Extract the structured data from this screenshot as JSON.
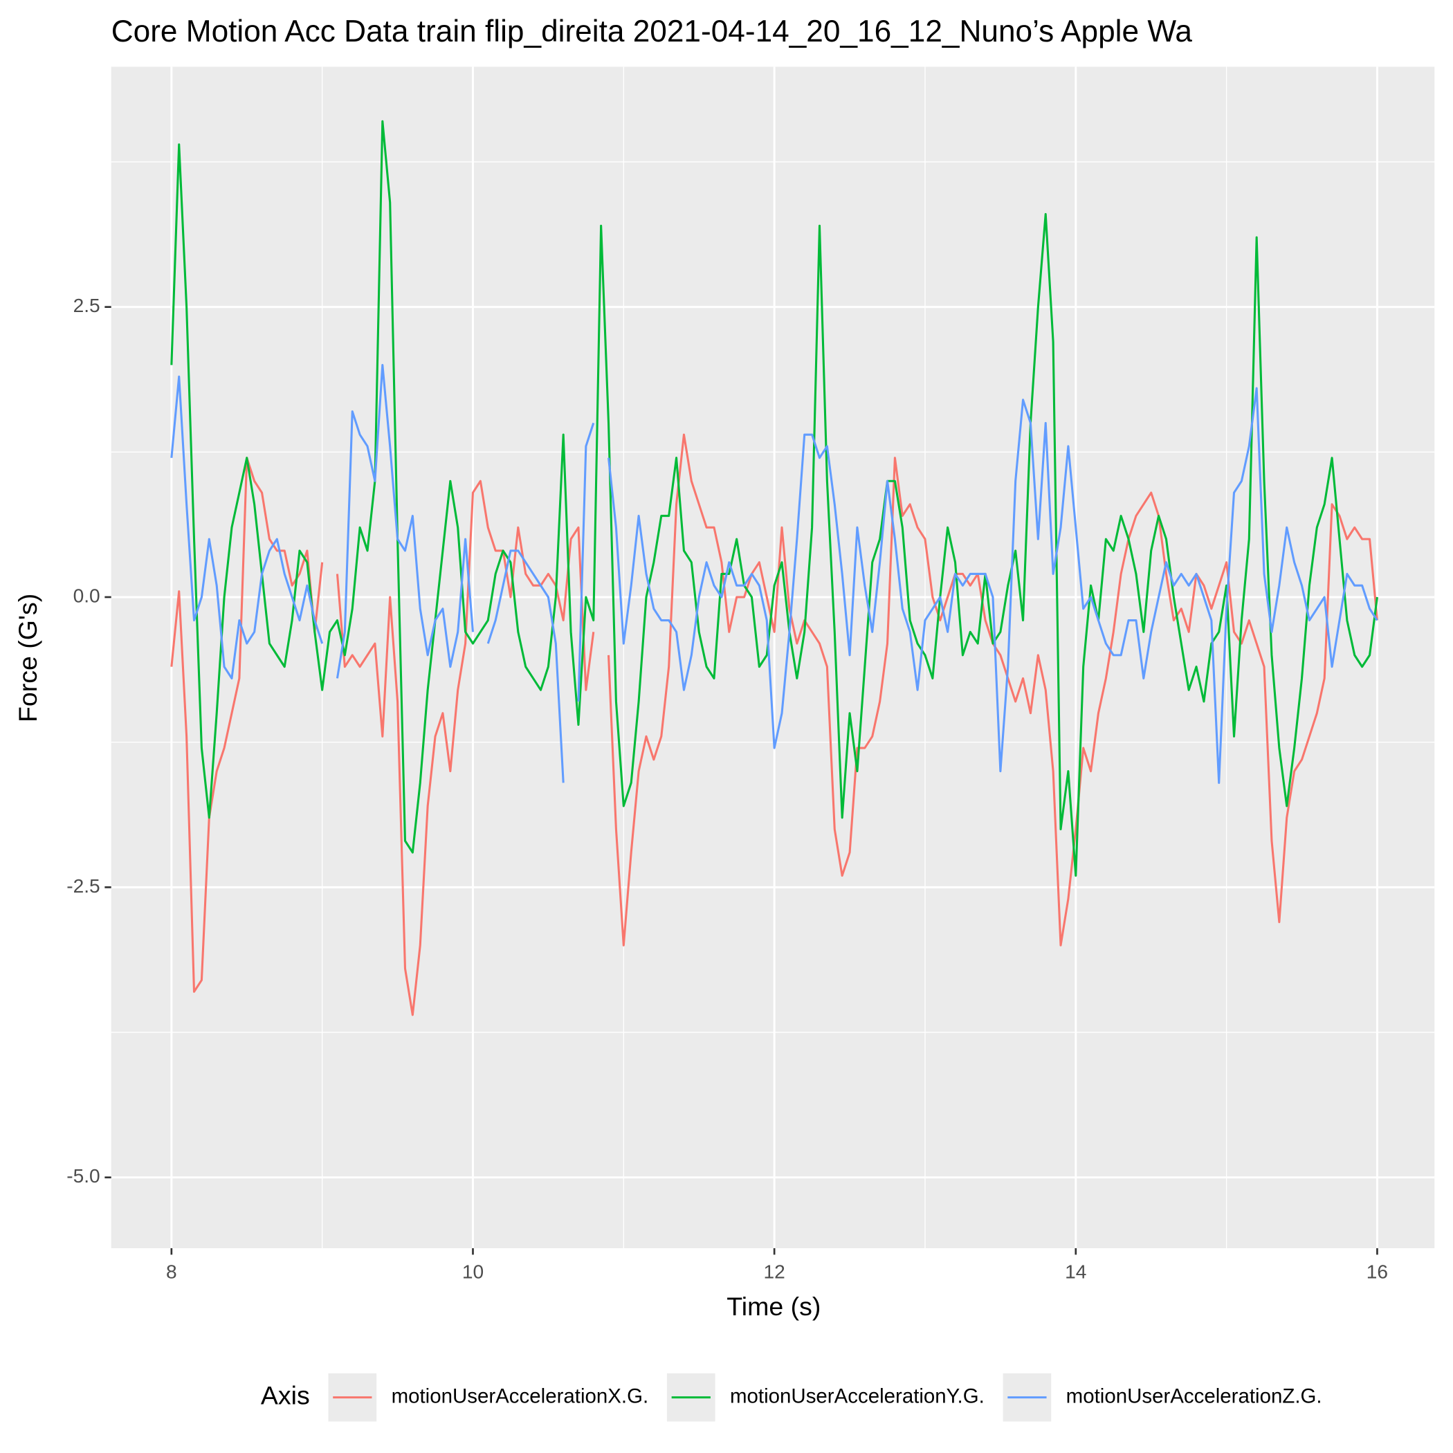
{
  "chart_data": {
    "type": "line",
    "title": "Core Motion Acc Data train flip_direita 2021-04-14_20_16_12_Nuno’s Apple Wa",
    "x_label": "Time (s)",
    "y_label": "Force (G's)",
    "legend_title": "Axis",
    "legend_position": "bottom",
    "xlim": [
      7.6,
      16.38
    ],
    "ylim": [
      -5.61,
      4.57
    ],
    "xticks": [
      8,
      10,
      12,
      14,
      16
    ],
    "yticks": [
      {
        "value": 2.5,
        "label": "2.5"
      },
      {
        "value": 0,
        "label": "0.0"
      },
      {
        "value": -2.5,
        "label": "-2.5"
      },
      {
        "value": -5,
        "label": "-5.0"
      }
    ],
    "x_minor_grid": [
      9,
      11,
      13,
      15
    ],
    "y_minor_grid": [
      3.75,
      1.25,
      -1.25,
      -3.75
    ],
    "grid": true,
    "x": [
      8,
      8.05,
      8.1,
      8.15,
      8.2,
      8.25,
      8.3,
      8.35,
      8.4,
      8.45,
      8.5,
      8.55,
      8.6,
      8.65,
      8.7,
      8.75,
      8.8,
      8.85,
      8.9,
      8.95,
      9,
      9.05,
      9.1,
      9.15,
      9.2,
      9.25,
      9.3,
      9.35,
      9.4,
      9.45,
      9.5,
      9.55,
      9.6,
      9.65,
      9.7,
      9.75,
      9.8,
      9.85,
      9.9,
      9.95,
      10,
      10.05,
      10.1,
      10.15,
      10.2,
      10.25,
      10.3,
      10.35,
      10.4,
      10.45,
      10.5,
      10.55,
      10.6,
      10.65,
      10.7,
      10.75,
      10.8,
      10.85,
      10.9,
      10.95,
      11,
      11.05,
      11.1,
      11.15,
      11.2,
      11.25,
      11.3,
      11.35,
      11.4,
      11.45,
      11.5,
      11.55,
      11.6,
      11.65,
      11.7,
      11.75,
      11.8,
      11.85,
      11.9,
      11.95,
      12,
      12.05,
      12.1,
      12.15,
      12.2,
      12.25,
      12.3,
      12.35,
      12.4,
      12.45,
      12.5,
      12.55,
      12.6,
      12.65,
      12.7,
      12.75,
      12.8,
      12.85,
      12.9,
      12.95,
      13,
      13.05,
      13.1,
      13.15,
      13.2,
      13.25,
      13.3,
      13.35,
      13.4,
      13.45,
      13.5,
      13.55,
      13.6,
      13.65,
      13.7,
      13.75,
      13.8,
      13.85,
      13.9,
      13.95,
      14,
      14.05,
      14.1,
      14.15,
      14.2,
      14.25,
      14.3,
      14.35,
      14.4,
      14.45,
      14.5,
      14.55,
      14.6,
      14.65,
      14.7,
      14.75,
      14.8,
      14.85,
      14.9,
      14.95,
      15,
      15.05,
      15.1,
      15.15,
      15.2,
      15.25,
      15.3,
      15.35,
      15.4,
      15.45,
      15.5,
      15.55,
      15.6,
      15.65,
      15.7,
      15.75,
      15.8,
      15.85,
      15.9,
      15.95,
      16
    ],
    "series": [
      {
        "name": "motionUserAccelerationX.G.",
        "color": "#F8766D",
        "values": [
          -0.6,
          0.05,
          -1.2,
          -3.4,
          -3.3,
          -1.9,
          -1.5,
          -1.3,
          -1.0,
          -0.7,
          1.2,
          1.0,
          0.9,
          0.5,
          0.4,
          0.4,
          0.1,
          0.2,
          0.4,
          -0.3,
          0.3,
          null,
          0.2,
          -0.6,
          -0.5,
          -0.6,
          -0.5,
          -0.4,
          -1.2,
          0.0,
          -0.9,
          -3.2,
          -3.6,
          -3.0,
          -1.8,
          -1.2,
          -1.0,
          -1.5,
          -0.8,
          -0.4,
          0.9,
          1.0,
          0.6,
          0.4,
          0.4,
          0.0,
          0.6,
          0.2,
          0.1,
          0.1,
          0.2,
          0.1,
          -0.2,
          0.5,
          0.6,
          -0.8,
          -0.3,
          null,
          -0.5,
          -2.0,
          -3.0,
          -2.2,
          -1.5,
          -1.2,
          -1.4,
          -1.2,
          -0.6,
          0.8,
          1.4,
          1.0,
          0.8,
          0.6,
          0.6,
          0.3,
          -0.3,
          0.0,
          0.0,
          0.2,
          0.3,
          0.0,
          -0.3,
          0.6,
          -0.1,
          -0.4,
          -0.2,
          -0.3,
          -0.4,
          -0.6,
          -2.0,
          -2.4,
          -2.2,
          -1.3,
          -1.3,
          -1.2,
          -0.9,
          -0.4,
          1.2,
          0.7,
          0.8,
          0.6,
          0.5,
          0.0,
          -0.2,
          0.0,
          0.2,
          0.2,
          0.1,
          0.2,
          -0.2,
          -0.4,
          -0.5,
          -0.7,
          -0.9,
          -0.7,
          -1.0,
          -0.5,
          -0.8,
          -1.5,
          -3.0,
          -2.6,
          -2.0,
          -1.3,
          -1.5,
          -1.0,
          -0.7,
          -0.3,
          0.2,
          0.5,
          0.7,
          0.8,
          0.9,
          0.7,
          0.2,
          -0.2,
          -0.1,
          -0.3,
          0.2,
          0.1,
          -0.1,
          0.1,
          0.3,
          -0.3,
          -0.4,
          -0.2,
          -0.4,
          -0.6,
          -2.1,
          -2.8,
          -1.9,
          -1.5,
          -1.4,
          -1.2,
          -1.0,
          -0.7,
          0.8,
          0.7,
          0.5,
          0.6,
          0.5,
          0.5,
          -0.2
        ]
      },
      {
        "name": "motionUserAccelerationY.G.",
        "color": "#00BA38",
        "values": [
          2.0,
          3.9,
          2.5,
          0.5,
          -1.3,
          -1.9,
          -1.0,
          0.0,
          0.6,
          0.9,
          1.2,
          0.8,
          0.2,
          -0.4,
          -0.5,
          -0.6,
          -0.2,
          0.4,
          0.3,
          -0.3,
          -0.8,
          -0.3,
          -0.2,
          -0.5,
          -0.1,
          0.6,
          0.4,
          1.0,
          4.1,
          3.4,
          0.5,
          -2.1,
          -2.2,
          -1.6,
          -0.8,
          -0.2,
          0.4,
          1.0,
          0.6,
          -0.3,
          -0.4,
          -0.3,
          -0.2,
          0.2,
          0.4,
          0.3,
          -0.3,
          -0.6,
          -0.7,
          -0.8,
          -0.6,
          0.0,
          1.4,
          -0.3,
          -1.1,
          0.0,
          -0.2,
          3.2,
          1.5,
          -0.9,
          -1.8,
          -1.6,
          -0.9,
          0.0,
          0.3,
          0.7,
          0.7,
          1.2,
          0.4,
          0.3,
          -0.3,
          -0.6,
          -0.7,
          0.2,
          0.2,
          0.5,
          0.1,
          0.0,
          -0.6,
          -0.5,
          0.1,
          0.3,
          -0.3,
          -0.7,
          -0.3,
          0.6,
          3.2,
          1.0,
          -0.3,
          -1.9,
          -1.0,
          -1.5,
          -0.6,
          0.3,
          0.5,
          1.0,
          1.0,
          0.6,
          -0.2,
          -0.4,
          -0.5,
          -0.7,
          0.0,
          0.6,
          0.3,
          -0.5,
          -0.3,
          -0.4,
          0.2,
          -0.4,
          -0.3,
          0.1,
          0.4,
          -0.2,
          1.5,
          2.5,
          3.3,
          2.2,
          -2.0,
          -1.5,
          -2.4,
          -0.6,
          0.1,
          -0.2,
          0.5,
          0.4,
          0.7,
          0.5,
          0.2,
          -0.3,
          0.4,
          0.7,
          0.5,
          0.0,
          -0.4,
          -0.8,
          -0.6,
          -0.9,
          -0.4,
          -0.3,
          0.1,
          -1.2,
          -0.2,
          0.5,
          3.1,
          1.0,
          -0.5,
          -1.3,
          -1.8,
          -1.3,
          -0.7,
          0.1,
          0.6,
          0.8,
          1.2,
          0.5,
          -0.2,
          -0.5,
          -0.6,
          -0.5,
          0.0
        ]
      },
      {
        "name": "motionUserAccelerationZ.G.",
        "color": "#619CFF",
        "values": [
          1.2,
          1.9,
          0.8,
          -0.2,
          0.0,
          0.5,
          0.1,
          -0.6,
          -0.7,
          -0.2,
          -0.4,
          -0.3,
          0.2,
          0.4,
          0.5,
          0.2,
          0.0,
          -0.2,
          0.1,
          -0.2,
          -0.4,
          null,
          -0.7,
          -0.3,
          1.6,
          1.4,
          1.3,
          1.0,
          2.0,
          1.3,
          0.5,
          0.4,
          0.7,
          -0.1,
          -0.5,
          -0.2,
          -0.1,
          -0.6,
          -0.3,
          0.5,
          -0.3,
          null,
          -0.4,
          -0.2,
          0.1,
          0.4,
          0.4,
          0.3,
          0.2,
          0.1,
          0.0,
          -0.4,
          -1.6,
          null,
          -0.9,
          1.3,
          1.5,
          null,
          1.2,
          0.6,
          -0.4,
          0.1,
          0.7,
          0.2,
          -0.1,
          -0.2,
          -0.2,
          -0.3,
          -0.8,
          -0.5,
          0.0,
          0.3,
          0.1,
          0.0,
          0.3,
          0.1,
          0.1,
          0.2,
          0.1,
          -0.2,
          -1.3,
          -1.0,
          -0.3,
          0.5,
          1.4,
          1.4,
          1.2,
          1.3,
          0.8,
          0.2,
          -0.5,
          0.6,
          0.1,
          -0.3,
          0.3,
          1.0,
          0.5,
          -0.1,
          -0.3,
          -0.8,
          -0.2,
          -0.1,
          0.0,
          -0.3,
          0.2,
          0.1,
          0.2,
          0.2,
          0.2,
          0.0,
          -1.5,
          -0.6,
          1.0,
          1.7,
          1.5,
          0.5,
          1.5,
          0.2,
          0.6,
          1.3,
          0.6,
          -0.1,
          0.0,
          -0.2,
          -0.4,
          -0.5,
          -0.5,
          -0.2,
          -0.2,
          -0.7,
          -0.3,
          0.0,
          0.3,
          0.1,
          0.2,
          0.1,
          0.2,
          0.0,
          -0.2,
          -1.6,
          -0.1,
          0.9,
          1.0,
          1.3,
          1.8,
          0.2,
          -0.3,
          0.1,
          0.6,
          0.3,
          0.1,
          -0.2,
          -0.1,
          0.0,
          -0.6,
          -0.2,
          0.2,
          0.1,
          0.1,
          -0.1,
          -0.2
        ]
      }
    ]
  }
}
